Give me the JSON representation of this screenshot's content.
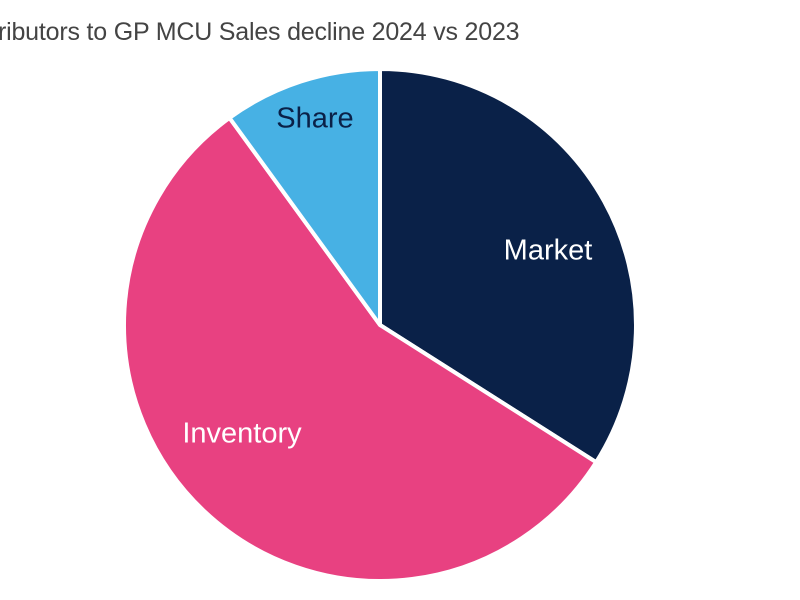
{
  "chart_data": {
    "type": "pie",
    "title": "ributors to GP MCU Sales decline 2024 vs 2023",
    "categories": [
      "Market",
      "Inventory",
      "Share"
    ],
    "values": [
      34,
      56,
      10
    ],
    "colors": [
      "#0a2148",
      "#e84181",
      "#47b1e4"
    ],
    "label_colors": [
      "#ffffff",
      "#ffffff",
      "#0a2148"
    ],
    "start_angle_deg": 0,
    "direction": "clockwise",
    "legend": "none (labels inside slices)"
  }
}
